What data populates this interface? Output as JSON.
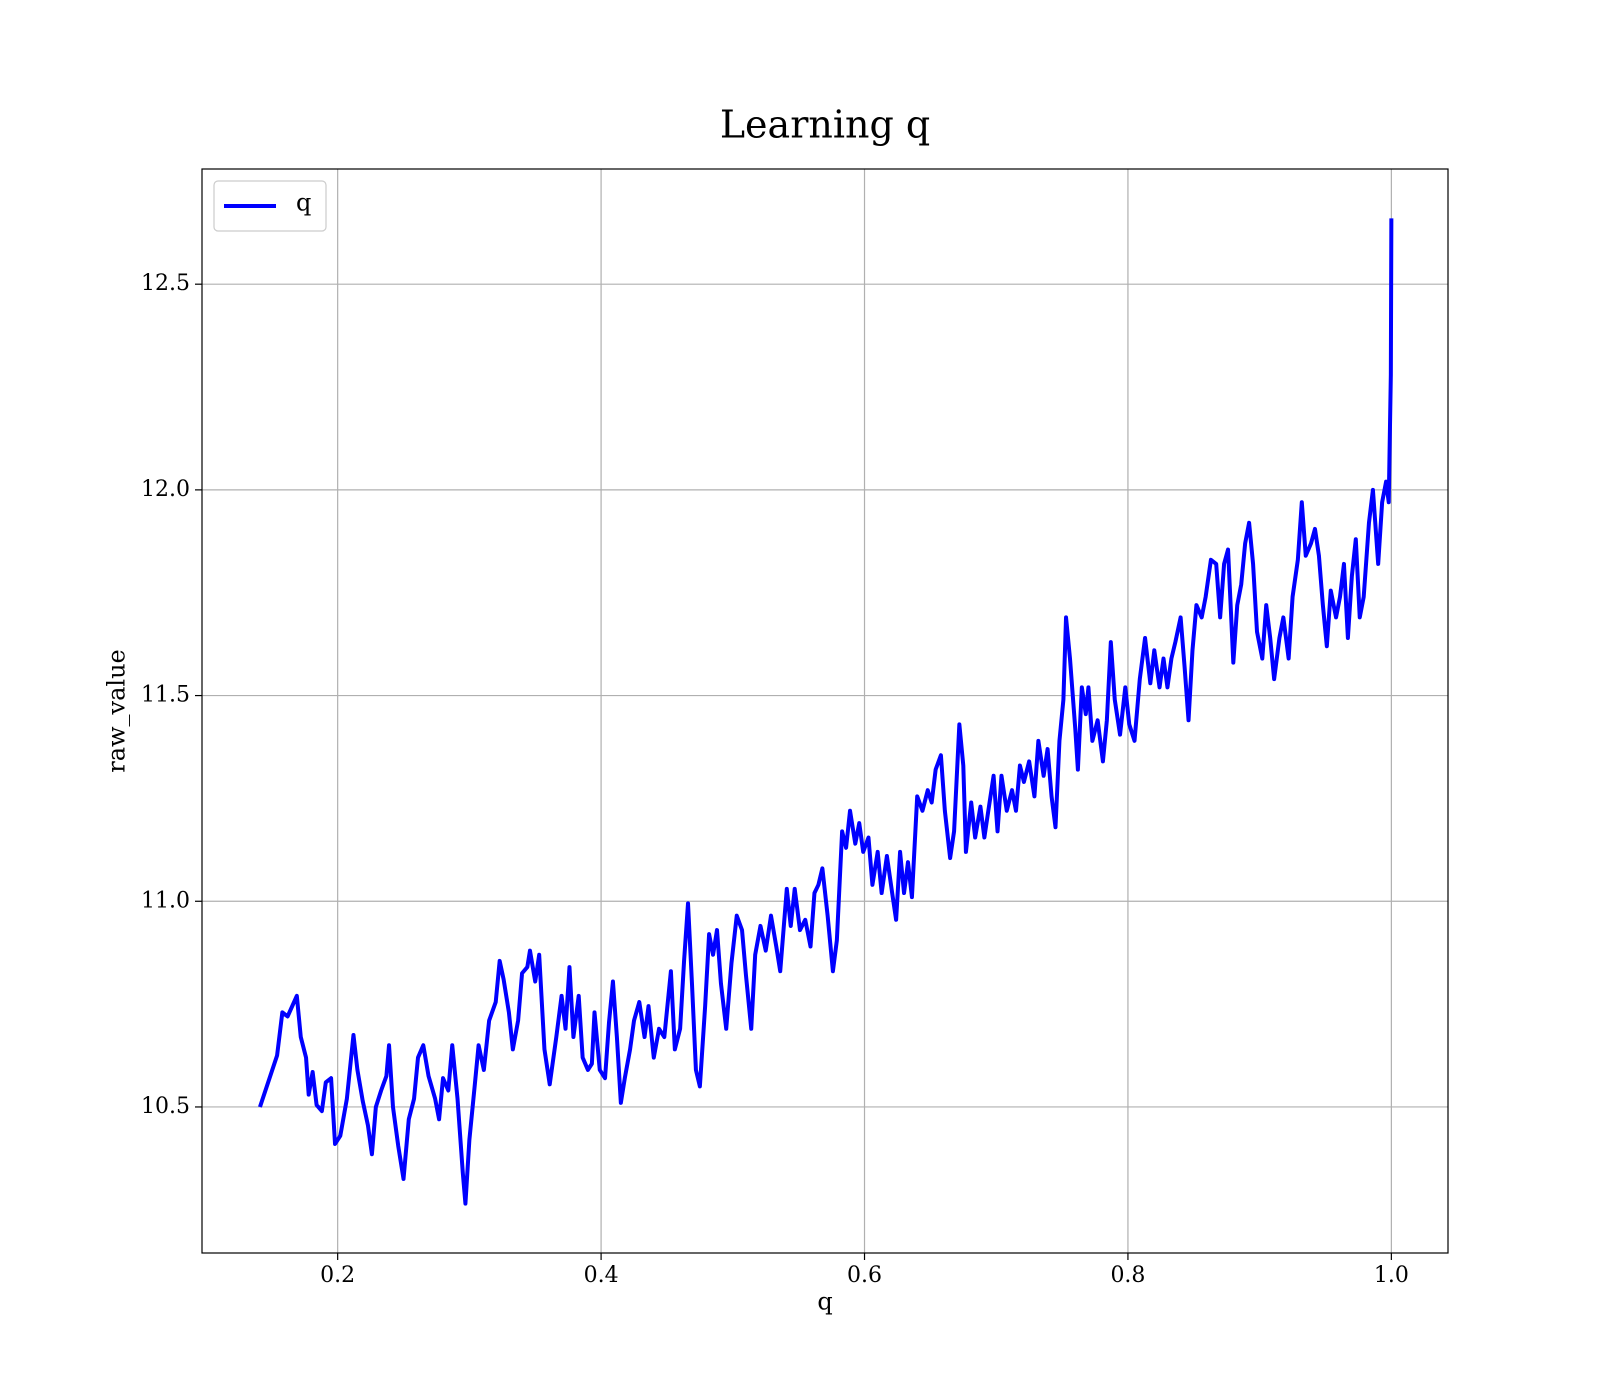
{
  "chart_data": {
    "type": "line",
    "title": "Learning q",
    "xlabel": "q",
    "ylabel": "raw_value",
    "grid": true,
    "legend": "upper left",
    "xlim": [
      0.097,
      1.043
    ],
    "ylim": [
      10.145,
      12.78
    ],
    "xticks": [
      0.2,
      0.4,
      0.6,
      0.8,
      {
        "value": 1.0,
        "label": "1.0"
      }
    ],
    "yticks": [
      10.5,
      {
        "value": 11.0,
        "label": "11.0"
      },
      11.5,
      {
        "value": 12.0,
        "label": "12.0"
      },
      12.5
    ],
    "x": [
      0.141,
      0.154,
      0.158,
      0.162,
      0.169,
      0.172,
      0.176,
      0.178,
      0.181,
      0.184,
      0.188,
      0.191,
      0.195,
      0.198,
      0.202,
      0.207,
      0.212,
      0.215,
      0.219,
      0.223,
      0.226,
      0.229,
      0.233,
      0.237,
      0.239,
      0.242,
      0.246,
      0.25,
      0.254,
      0.258,
      0.261,
      0.265,
      0.269,
      0.274,
      0.277,
      0.28,
      0.284,
      0.287,
      0.291,
      0.295,
      0.297,
      0.3,
      0.304,
      0.307,
      0.311,
      0.315,
      0.32,
      0.323,
      0.326,
      0.33,
      0.333,
      0.337,
      0.34,
      0.344,
      0.346,
      0.35,
      0.353,
      0.357,
      0.361,
      0.366,
      0.37,
      0.373,
      0.376,
      0.379,
      0.383,
      0.386,
      0.39,
      0.393,
      0.395,
      0.399,
      0.403,
      0.406,
      0.409,
      0.412,
      0.415,
      0.418,
      0.422,
      0.425,
      0.429,
      0.433,
      0.436,
      0.44,
      0.444,
      0.448,
      0.453,
      0.456,
      0.46,
      0.463,
      0.466,
      0.469,
      0.472,
      0.475,
      0.479,
      0.482,
      0.485,
      0.488,
      0.491,
      0.495,
      0.499,
      0.503,
      0.507,
      0.51,
      0.514,
      0.517,
      0.521,
      0.525,
      0.529,
      0.533,
      0.536,
      0.541,
      0.544,
      0.547,
      0.551,
      0.555,
      0.559,
      0.562,
      0.565,
      0.568,
      0.572,
      0.576,
      0.579,
      0.583,
      0.586,
      0.589,
      0.593,
      0.596,
      0.599,
      0.603,
      0.606,
      0.61,
      0.613,
      0.617,
      0.621,
      0.624,
      0.627,
      0.63,
      0.633,
      0.636,
      0.64,
      0.644,
      0.648,
      0.651,
      0.654,
      0.658,
      0.661,
      0.665,
      0.668,
      0.672,
      0.675,
      0.677,
      0.681,
      0.684,
      0.688,
      0.691,
      0.694,
      0.698,
      0.701,
      0.704,
      0.708,
      0.712,
      0.715,
      0.718,
      0.721,
      0.725,
      0.729,
      0.732,
      0.736,
      0.739,
      0.742,
      0.745,
      0.748,
      0.751,
      0.753,
      0.756,
      0.76,
      0.762,
      0.765,
      0.768,
      0.77,
      0.773,
      0.777,
      0.781,
      0.784,
      0.787,
      0.79,
      0.794,
      0.798,
      0.801,
      0.805,
      0.809,
      0.813,
      0.817,
      0.82,
      0.824,
      0.827,
      0.83,
      0.833,
      0.836,
      0.84,
      0.843,
      0.846,
      0.849,
      0.852,
      0.856,
      0.859,
      0.863,
      0.867,
      0.87,
      0.873,
      0.876,
      0.88,
      0.883,
      0.886,
      0.889,
      0.892,
      0.895,
      0.898,
      0.902,
      0.905,
      0.908,
      0.911,
      0.915,
      0.918,
      0.922,
      0.925,
      0.929,
      0.932,
      0.935,
      0.939,
      0.942,
      0.945,
      0.948,
      0.951,
      0.954,
      0.958,
      0.961,
      0.964,
      0.967,
      0.97,
      0.973,
      0.976,
      0.979,
      0.983,
      0.986,
      0.99,
      0.993,
      0.996,
      0.998,
      0.9996,
      1.0
    ],
    "series": [
      {
        "name": "q",
        "color": "#0000ff",
        "values": [
          10.5,
          10.625,
          10.73,
          10.72,
          10.77,
          10.67,
          10.62,
          10.53,
          10.585,
          10.505,
          10.49,
          10.56,
          10.57,
          10.41,
          10.43,
          10.52,
          10.675,
          10.59,
          10.515,
          10.455,
          10.385,
          10.5,
          10.54,
          10.575,
          10.65,
          10.5,
          10.405,
          10.325,
          10.47,
          10.52,
          10.62,
          10.65,
          10.575,
          10.52,
          10.47,
          10.57,
          10.54,
          10.65,
          10.52,
          10.34,
          10.265,
          10.42,
          10.55,
          10.65,
          10.59,
          10.71,
          10.755,
          10.855,
          10.81,
          10.73,
          10.64,
          10.71,
          10.825,
          10.84,
          10.88,
          10.805,
          10.87,
          10.64,
          10.555,
          10.67,
          10.77,
          10.69,
          10.84,
          10.67,
          10.77,
          10.62,
          10.59,
          10.605,
          10.73,
          10.59,
          10.57,
          10.705,
          10.805,
          10.67,
          10.51,
          10.57,
          10.64,
          10.71,
          10.755,
          10.67,
          10.745,
          10.62,
          10.69,
          10.67,
          10.83,
          10.64,
          10.69,
          10.855,
          10.995,
          10.8,
          10.59,
          10.55,
          10.745,
          10.92,
          10.87,
          10.93,
          10.8,
          10.69,
          10.85,
          10.965,
          10.93,
          10.82,
          10.69,
          10.87,
          10.94,
          10.88,
          10.965,
          10.89,
          10.83,
          11.03,
          10.94,
          11.03,
          10.93,
          10.955,
          10.89,
          11.02,
          11.04,
          11.08,
          10.965,
          10.83,
          10.905,
          11.17,
          11.13,
          11.22,
          11.14,
          11.19,
          11.12,
          11.155,
          11.04,
          11.12,
          11.02,
          11.11,
          11.02,
          10.955,
          11.12,
          11.02,
          11.095,
          11.01,
          11.255,
          11.22,
          11.27,
          11.24,
          11.32,
          11.355,
          11.22,
          11.105,
          11.17,
          11.43,
          11.33,
          11.12,
          11.24,
          11.155,
          11.23,
          11.155,
          11.22,
          11.305,
          11.17,
          11.305,
          11.22,
          11.27,
          11.22,
          11.33,
          11.29,
          11.34,
          11.255,
          11.39,
          11.305,
          11.37,
          11.255,
          11.18,
          11.39,
          11.49,
          11.69,
          11.59,
          11.42,
          11.32,
          11.52,
          11.455,
          11.52,
          11.39,
          11.44,
          11.34,
          11.44,
          11.63,
          11.49,
          11.405,
          11.52,
          11.43,
          11.39,
          11.54,
          11.64,
          11.53,
          11.61,
          11.52,
          11.59,
          11.52,
          11.59,
          11.63,
          11.69,
          11.57,
          11.44,
          11.61,
          11.72,
          11.69,
          11.74,
          11.83,
          11.82,
          11.69,
          11.82,
          11.855,
          11.58,
          11.72,
          11.77,
          11.87,
          11.92,
          11.82,
          11.655,
          11.59,
          11.72,
          11.64,
          11.54,
          11.64,
          11.69,
          11.59,
          11.74,
          11.83,
          11.97,
          11.84,
          11.87,
          11.905,
          11.84,
          11.72,
          11.62,
          11.755,
          11.69,
          11.74,
          11.82,
          11.64,
          11.79,
          11.88,
          11.69,
          11.74,
          11.92,
          12.0,
          11.82,
          11.97,
          12.02,
          11.97,
          12.28,
          12.66
        ]
      }
    ]
  }
}
